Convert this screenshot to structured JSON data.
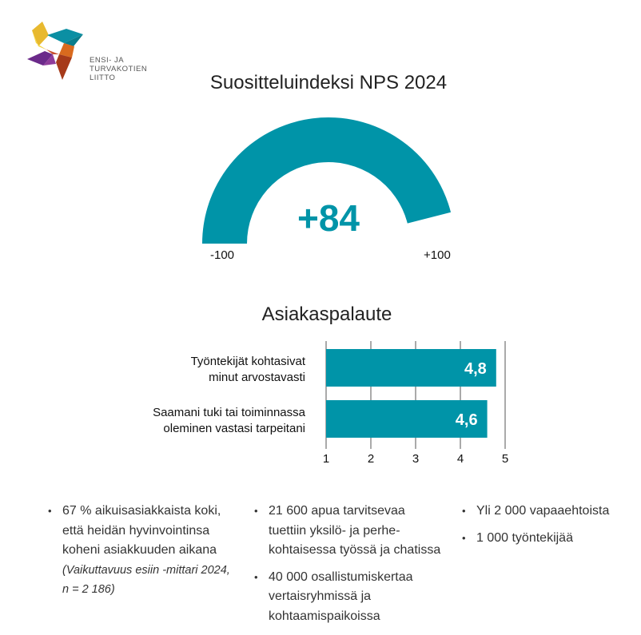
{
  "logo": {
    "lines": [
      "ENSI- JA",
      "TURVAKOTIEN",
      "LIITTO"
    ]
  },
  "colors": {
    "accent": "#0094a8"
  },
  "chart_data": [
    {
      "type": "gauge",
      "title": "Suositteluindeksi NPS 2024",
      "value": 84,
      "value_label": "+84",
      "min": -100,
      "max": 100,
      "min_label": "-100",
      "max_label": "+100"
    },
    {
      "type": "bar",
      "orientation": "horizontal",
      "title": "Asiakaspalaute",
      "categories": [
        "Työntekijät kohtasivat\nminut arvostavasti",
        "Saamani tuki tai toiminnassa\noleminen vastasi tarpeitani"
      ],
      "values": [
        4.8,
        4.6
      ],
      "data_labels": [
        "4,8",
        "4,6"
      ],
      "xlim": [
        1,
        5
      ],
      "ticks": [
        "1",
        "2",
        "3",
        "4",
        "5"
      ],
      "grid": true
    }
  ],
  "bullets": {
    "col1": [
      {
        "text": "67 % aikuisasiakkaista koki,\nettä heidän hyvinvointinsa\nkoheni asiakkuuden aikana",
        "note": "(Vaikuttavuus esiin -mittari 2024,\nn = 2 186)"
      }
    ],
    "col2": [
      "21 600 apua tarvitsevaa\ntuettiin yksilö- ja perhe-\nkohtaisessa työssä ja chatissa",
      "40 000 osallistumiskertaa\nvertaisryhmissä ja\nkohtaamispaikoissa"
    ],
    "col3": [
      "Yli 2 000 vapaaehtoista",
      "1 000 työntekijää"
    ]
  }
}
